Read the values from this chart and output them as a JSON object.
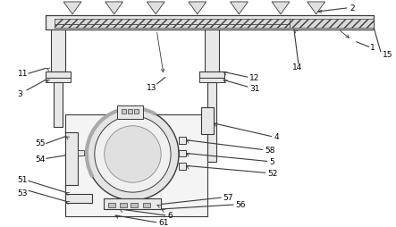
{
  "bg_color": "#ffffff",
  "lc": "#3a3a3a",
  "gray_fill": "#e8e8e8",
  "dark_gray": "#b0b0b0",
  "white": "#ffffff",
  "hatch_fill": "#d8d8d8"
}
